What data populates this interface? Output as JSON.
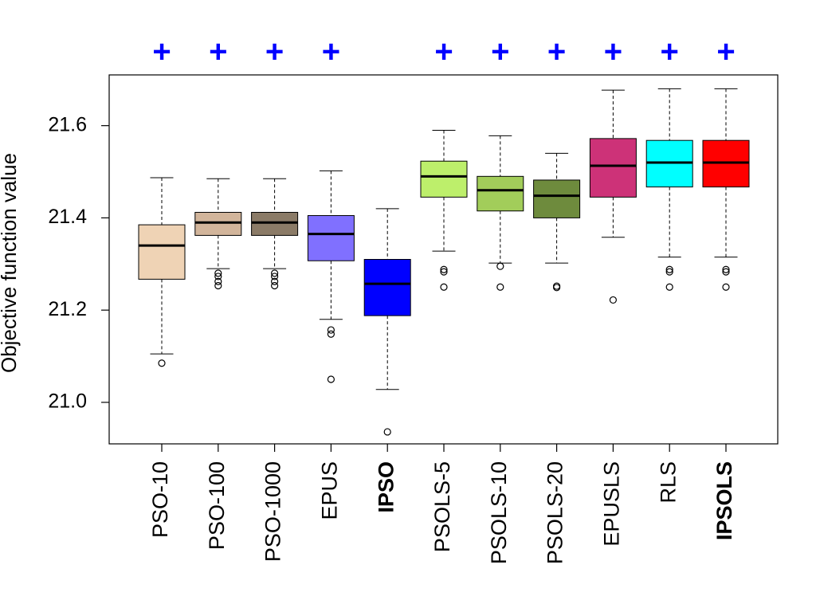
{
  "chart_data": {
    "type": "boxplot",
    "title": "",
    "xlabel": "",
    "ylabel": "Objective function value",
    "ylim": [
      20.91,
      21.71
    ],
    "yticks": [
      21.0,
      21.2,
      21.4,
      21.6
    ],
    "ytick_labels": [
      "21.0",
      "21.2",
      "21.4",
      "21.6"
    ],
    "grid": false,
    "significance_color": "#0000ff",
    "median_color": "#000000",
    "boxes": [
      {
        "label": "PSO-10",
        "bold": false,
        "color": "#efd3b5",
        "whisker_low": 21.105,
        "q1": 21.267,
        "median": 21.34,
        "q3": 21.385,
        "whisker_high": 21.487,
        "outliers": [
          21.085
        ],
        "sig": "+"
      },
      {
        "label": "PSO-100",
        "bold": false,
        "color": "#d2b59b",
        "whisker_low": 21.29,
        "q1": 21.362,
        "median": 21.39,
        "q3": 21.412,
        "whisker_high": 21.485,
        "outliers": [
          21.28,
          21.273,
          21.262,
          21.253
        ],
        "sig": "+"
      },
      {
        "label": "PSO-1000",
        "bold": false,
        "color": "#8b7b67",
        "whisker_low": 21.29,
        "q1": 21.362,
        "median": 21.39,
        "q3": 21.412,
        "whisker_high": 21.485,
        "outliers": [
          21.28,
          21.273,
          21.262,
          21.253
        ],
        "sig": "+"
      },
      {
        "label": "EPUS",
        "bold": false,
        "color": "#8070ff",
        "whisker_low": 21.18,
        "q1": 21.307,
        "median": 21.365,
        "q3": 21.405,
        "whisker_high": 21.502,
        "outliers": [
          21.157,
          21.148,
          21.05
        ],
        "sig": "+"
      },
      {
        "label": "IPSO",
        "bold": true,
        "color": "#0000ff",
        "whisker_low": 21.028,
        "q1": 21.188,
        "median": 21.257,
        "q3": 21.31,
        "whisker_high": 21.42,
        "outliers": [
          20.936
        ],
        "sig": ""
      },
      {
        "label": "PSOLS-5",
        "bold": false,
        "color": "#bdef6b",
        "whisker_low": 21.328,
        "q1": 21.445,
        "median": 21.49,
        "q3": 21.523,
        "whisker_high": 21.59,
        "outliers": [
          21.288,
          21.283,
          21.25
        ],
        "sig": "+"
      },
      {
        "label": "PSOLS-10",
        "bold": false,
        "color": "#a2cd5a",
        "whisker_low": 21.302,
        "q1": 21.415,
        "median": 21.46,
        "q3": 21.49,
        "whisker_high": 21.578,
        "outliers": [
          21.295,
          21.25
        ],
        "sig": "+"
      },
      {
        "label": "PSOLS-20",
        "bold": false,
        "color": "#6e8b3d",
        "whisker_low": 21.302,
        "q1": 21.4,
        "median": 21.448,
        "q3": 21.482,
        "whisker_high": 21.54,
        "outliers": [
          21.252,
          21.249
        ],
        "sig": "+"
      },
      {
        "label": "EPUSLS",
        "bold": false,
        "color": "#cd3278",
        "whisker_low": 21.358,
        "q1": 21.445,
        "median": 21.513,
        "q3": 21.572,
        "whisker_high": 21.677,
        "outliers": [
          21.222
        ],
        "sig": "+"
      },
      {
        "label": "RLS",
        "bold": false,
        "color": "#00ffff",
        "whisker_low": 21.315,
        "q1": 21.467,
        "median": 21.52,
        "q3": 21.568,
        "whisker_high": 21.68,
        "outliers": [
          21.288,
          21.283,
          21.25
        ],
        "sig": "+"
      },
      {
        "label": "IPSOLS",
        "bold": true,
        "color": "#ff0000",
        "whisker_low": 21.315,
        "q1": 21.467,
        "median": 21.52,
        "q3": 21.568,
        "whisker_high": 21.68,
        "outliers": [
          21.288,
          21.283,
          21.25
        ],
        "sig": "+"
      }
    ]
  }
}
